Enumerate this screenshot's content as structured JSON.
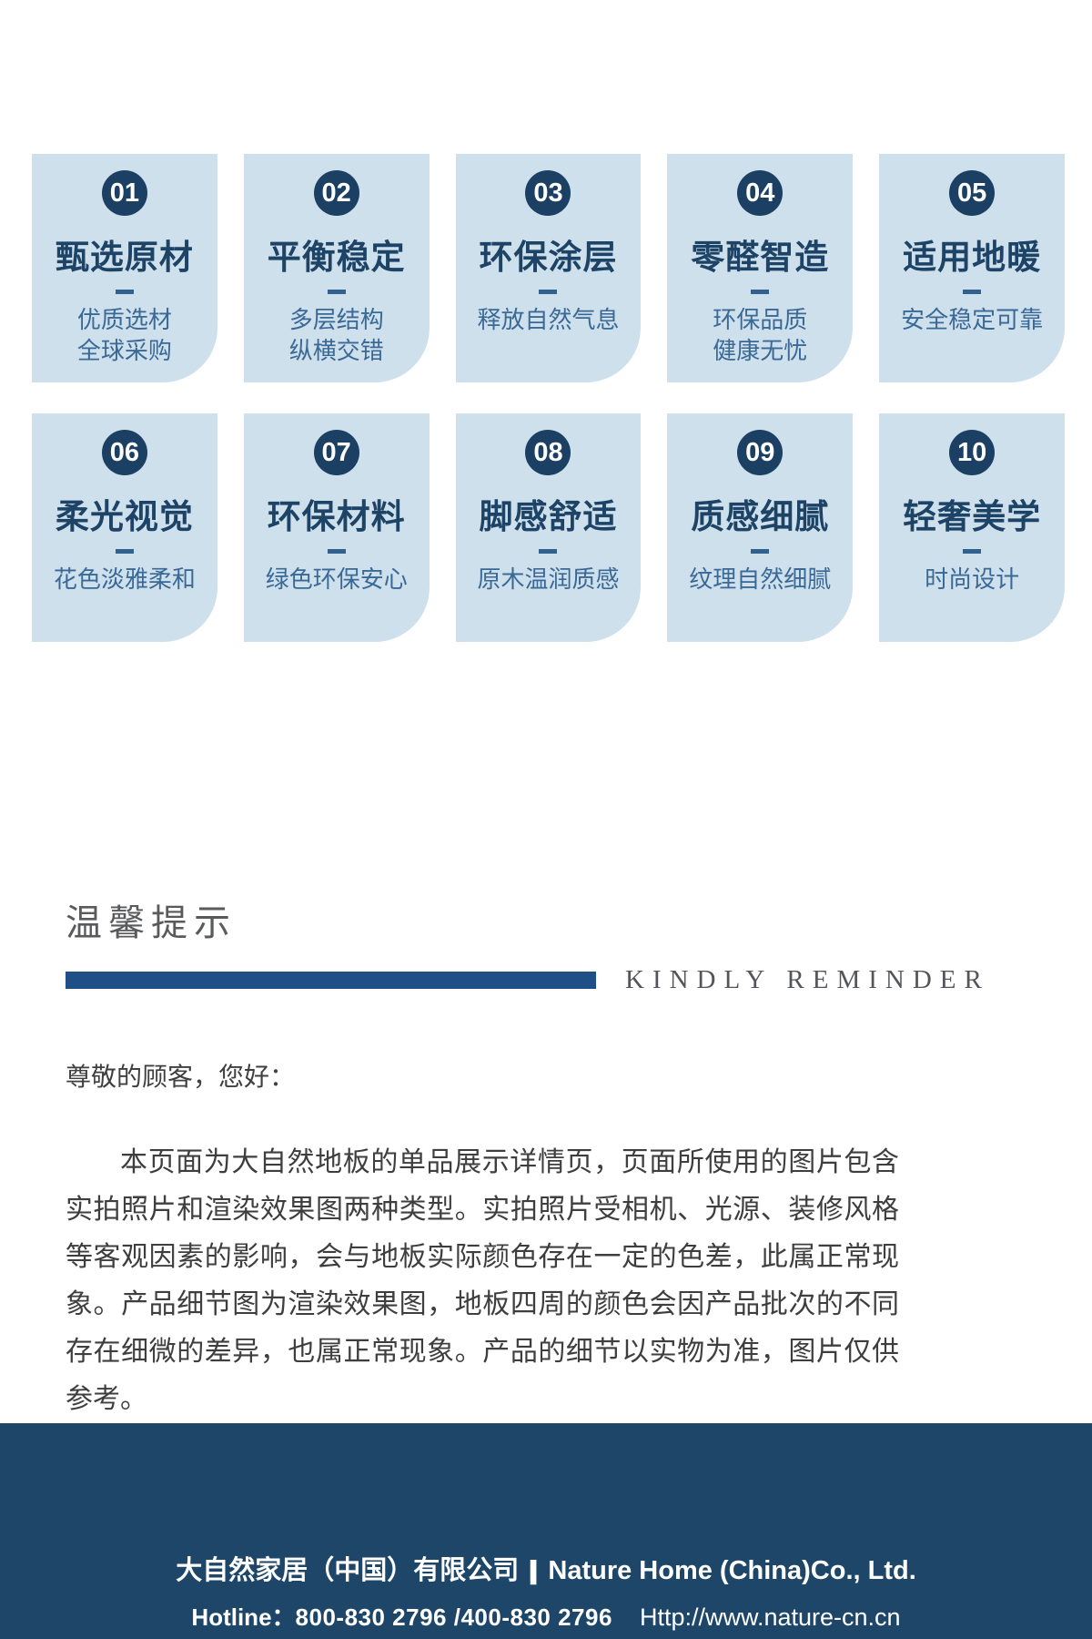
{
  "features": [
    {
      "num": "01",
      "title": "甄选原材",
      "lines": [
        "优质选材",
        "全球采购"
      ]
    },
    {
      "num": "02",
      "title": "平衡稳定",
      "lines": [
        "多层结构",
        "纵横交错"
      ]
    },
    {
      "num": "03",
      "title": "环保涂层",
      "lines": [
        "释放自然气息"
      ]
    },
    {
      "num": "04",
      "title": "零醛智造",
      "lines": [
        "环保品质",
        "健康无忧"
      ]
    },
    {
      "num": "05",
      "title": "适用地暖",
      "lines": [
        "安全稳定可靠"
      ]
    },
    {
      "num": "06",
      "title": "柔光视觉",
      "lines": [
        "花色淡雅柔和"
      ]
    },
    {
      "num": "07",
      "title": "环保材料",
      "lines": [
        "绿色环保安心"
      ]
    },
    {
      "num": "08",
      "title": "脚感舒适",
      "lines": [
        "原木温润质感"
      ]
    },
    {
      "num": "09",
      "title": "质感细腻",
      "lines": [
        "纹理自然细腻"
      ]
    },
    {
      "num": "10",
      "title": "轻奢美学",
      "lines": [
        "时尚设计"
      ]
    }
  ],
  "reminder": {
    "heading_cn": "温馨提示",
    "heading_en": "KINDLY REMINDER",
    "greeting": "尊敬的顾客，您好：",
    "body": "本页面为大自然地板的单品展示详情页，页面所使用的图片包含实拍照片和渲染效果图两种类型。实拍照片受相机、光源、装修风格等客观因素的影响，会与地板实际颜色存在一定的色差，此属正常现象。产品细节图为渲染效果图，地板四周的颜色会因产品批次的不同存在细微的差异，也属正常现象。产品的细节以实物为准，图片仅供参考。"
  },
  "footer": {
    "company_cn": "大自然家居（中国）有限公司",
    "separator": "|",
    "company_en": "Nature Home (China)Co., Ltd.",
    "hotline_label": "Hotline：",
    "hotline_numbers": "800-830 2796 /400-830 2796",
    "website": "Http://www.nature-cn.cn"
  },
  "colors": {
    "card_bg": "#cfe0ed",
    "navy": "#1b4064",
    "subtitle_blue": "#3a6996",
    "bar_blue": "#1e4f87",
    "footer_bg": "#1d4669",
    "heading_gray": "#595a5c",
    "body_gray": "#3e3e3e"
  }
}
